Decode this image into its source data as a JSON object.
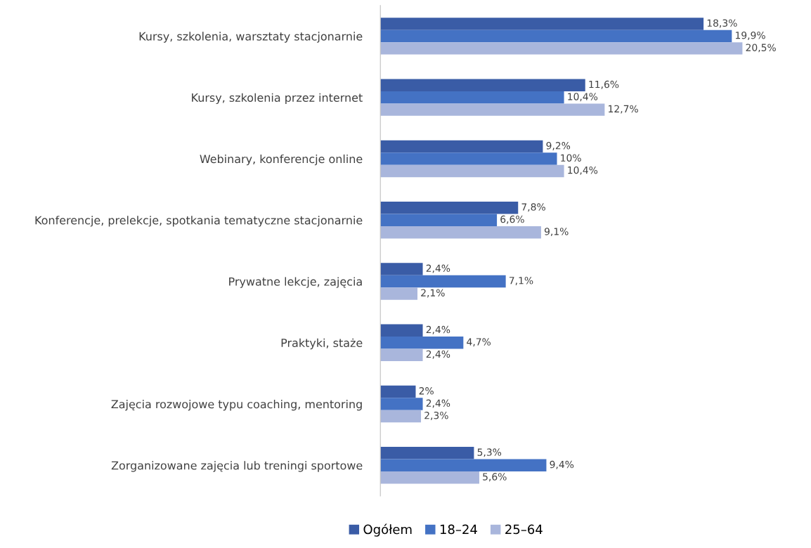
{
  "chart_data": {
    "type": "bar",
    "orientation": "horizontal",
    "categories": [
      "Kursy, szkolenia, warsztaty stacjonarnie",
      "Kursy, szkolenia przez internet",
      "Webinary, konferencje online",
      "Konferencje, prelekcje, spotkania tematyczne stacjonarnie",
      "Prywatne lekcje, zajęcia",
      "Praktyki, staże",
      "Zajęcia rozwojowe typu coaching, mentoring",
      "Zorganizowane zajęcia lub treningi sportowe"
    ],
    "series": [
      {
        "name": "Ogółem",
        "color": "#3a5ca6",
        "values": [
          18.3,
          11.6,
          9.2,
          7.8,
          2.4,
          2.4,
          2,
          5.3
        ],
        "value_labels": [
          "18,3%",
          "11,6%",
          "9,2%",
          "7,8%",
          "2,4%",
          "2,4%",
          "2%",
          "5,3%"
        ]
      },
      {
        "name": "18–24",
        "color": "#4472c4",
        "values": [
          19.9,
          10.4,
          10,
          6.6,
          7.1,
          4.7,
          2.4,
          9.4
        ],
        "value_labels": [
          "19,9%",
          "10,4%",
          "10%",
          "6,6%",
          "7,1%",
          "4,7%",
          "2,4%",
          "9,4%"
        ]
      },
      {
        "name": "25–64",
        "color": "#a9b6dc",
        "values": [
          20.5,
          12.7,
          10.4,
          9.1,
          2.1,
          2.4,
          2.3,
          5.6
        ],
        "value_labels": [
          "20,5%",
          "12,7%",
          "10,4%",
          "9,1%",
          "2,1%",
          "2,4%",
          "2,3%",
          "5,6%"
        ]
      }
    ],
    "legend": "bottom",
    "grid": false
  }
}
